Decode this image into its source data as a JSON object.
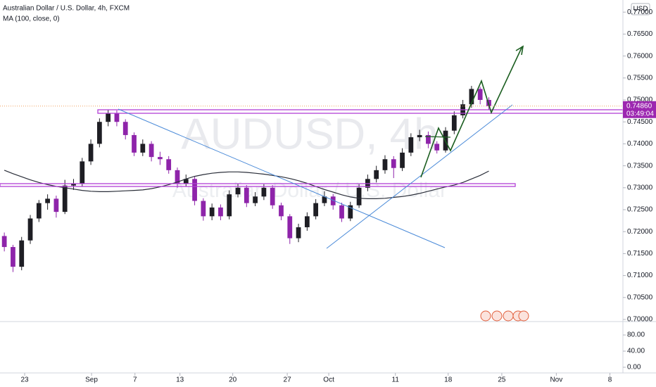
{
  "chart_data": [
    {
      "type": "candlestick",
      "title": "Australian Dollar / U.S. Dollar, 4h, FXCM",
      "subtitle": "MA (100, close, 0)",
      "watermark": "AUDUSD, 4h",
      "watermark_subtitle": "Australian Dollar / U.S. Dollar",
      "currency": "USD",
      "up_color": "#1e1e24",
      "down_color": "#8e24aa",
      "open": [
        0.719,
        0.7165,
        0.712,
        0.718,
        0.723,
        0.7265,
        0.7275,
        0.7245,
        0.7305,
        0.731,
        0.736,
        0.74,
        0.745,
        0.747,
        0.745,
        0.742,
        0.738,
        0.74,
        0.737,
        0.7365,
        0.734,
        0.731,
        0.732,
        0.727,
        0.7235,
        0.7255,
        0.7235,
        0.7285,
        0.73,
        0.7265,
        0.728,
        0.73,
        0.726,
        0.7235,
        0.7185,
        0.721,
        0.7235,
        0.7265,
        0.728,
        0.726,
        0.723,
        0.726,
        0.73,
        0.732,
        0.734,
        0.7365,
        0.7345,
        0.738,
        0.7415,
        0.742,
        0.74,
        0.7385,
        0.743,
        0.7465,
        0.749,
        0.7525,
        0.75
      ],
      "high": [
        0.7198,
        0.717,
        0.7188,
        0.7238,
        0.7272,
        0.7285,
        0.7282,
        0.7318,
        0.732,
        0.7368,
        0.741,
        0.7458,
        0.7478,
        0.7476,
        0.7456,
        0.7426,
        0.741,
        0.7406,
        0.7382,
        0.7372,
        0.7346,
        0.733,
        0.7326,
        0.7276,
        0.7264,
        0.7262,
        0.7294,
        0.731,
        0.7306,
        0.729,
        0.7308,
        0.7306,
        0.7266,
        0.724,
        0.7218,
        0.7244,
        0.7274,
        0.7292,
        0.7286,
        0.7266,
        0.7268,
        0.7308,
        0.733,
        0.735,
        0.7374,
        0.7372,
        0.739,
        0.7424,
        0.7432,
        0.7428,
        0.7406,
        0.7438,
        0.7474,
        0.75,
        0.7532,
        0.753,
        0.7506
      ],
      "low": [
        0.7155,
        0.7108,
        0.7112,
        0.7172,
        0.7222,
        0.725,
        0.7232,
        0.724,
        0.7295,
        0.7302,
        0.7352,
        0.7392,
        0.744,
        0.744,
        0.741,
        0.7372,
        0.7372,
        0.736,
        0.7352,
        0.7332,
        0.73,
        0.7302,
        0.726,
        0.7225,
        0.7226,
        0.7226,
        0.7228,
        0.7278,
        0.7256,
        0.7258,
        0.7272,
        0.7252,
        0.7226,
        0.7172,
        0.7176,
        0.7202,
        0.7228,
        0.7258,
        0.725,
        0.7222,
        0.7224,
        0.7254,
        0.7292,
        0.7312,
        0.7332,
        0.7322,
        0.7338,
        0.7372,
        0.7406,
        0.739,
        0.7378,
        0.738,
        0.7422,
        0.7458,
        0.7482,
        0.749,
        0.7478
      ],
      "close": [
        0.7165,
        0.712,
        0.718,
        0.723,
        0.7265,
        0.7275,
        0.7245,
        0.7305,
        0.731,
        0.736,
        0.74,
        0.745,
        0.747,
        0.745,
        0.742,
        0.738,
        0.74,
        0.737,
        0.7365,
        0.734,
        0.731,
        0.732,
        0.727,
        0.7235,
        0.7255,
        0.7235,
        0.7285,
        0.73,
        0.7265,
        0.728,
        0.73,
        0.726,
        0.7235,
        0.7185,
        0.721,
        0.7235,
        0.7265,
        0.728,
        0.726,
        0.723,
        0.726,
        0.73,
        0.732,
        0.734,
        0.7365,
        0.7345,
        0.738,
        0.7415,
        0.742,
        0.74,
        0.7385,
        0.743,
        0.7465,
        0.749,
        0.7525,
        0.75,
        0.7486
      ],
      "ma": {
        "color": "#2a2e39",
        "values": [
          0.734,
          0.7332,
          0.7325,
          0.7318,
          0.7312,
          0.7307,
          0.7303,
          0.73,
          0.7297,
          0.7294,
          0.7292,
          0.7291,
          0.7291,
          0.7292,
          0.7293,
          0.7294,
          0.7295,
          0.7298,
          0.7302,
          0.7307,
          0.7313,
          0.732,
          0.7326,
          0.733,
          0.7333,
          0.7335,
          0.7336,
          0.7336,
          0.7335,
          0.7333,
          0.7331,
          0.7328,
          0.7325,
          0.7321,
          0.7316,
          0.731,
          0.7303,
          0.7296,
          0.729,
          0.7284,
          0.7279,
          0.7276,
          0.7275,
          0.7275,
          0.7276,
          0.7278,
          0.728,
          0.7283,
          0.7287,
          0.7292,
          0.7297,
          0.7302,
          0.7306,
          0.7312,
          0.732,
          0.7328,
          0.7338
        ]
      },
      "last_price": {
        "value": 0.7486,
        "label": "0.74860"
      },
      "countdown": "03:49:04",
      "last_color": "#9c27b0",
      "xlim": [
        -0.5,
        71.5
      ],
      "xticks": [
        {
          "value": 2.35,
          "label": "23"
        },
        {
          "value": 10.08,
          "label": "Sep"
        },
        {
          "value": 15.1,
          "label": "7"
        },
        {
          "value": 20.3,
          "label": "13"
        },
        {
          "value": 26.4,
          "label": "20"
        },
        {
          "value": 32.7,
          "label": "27"
        },
        {
          "value": 37.5,
          "label": "Oct"
        },
        {
          "value": 45.2,
          "label": "11"
        },
        {
          "value": 51.3,
          "label": "18"
        },
        {
          "value": 57.5,
          "label": "25"
        },
        {
          "value": 63.8,
          "label": "Nov"
        },
        {
          "value": 70.0,
          "label": "8"
        }
      ],
      "ylim": [
        0.69984,
        0.77276
      ],
      "yticks": [
        {
          "value": 0.7,
          "label": "0.70000"
        },
        {
          "value": 0.705,
          "label": "0.70500"
        },
        {
          "value": 0.71,
          "label": "0.71000"
        },
        {
          "value": 0.715,
          "label": "0.71500"
        },
        {
          "value": 0.72,
          "label": "0.72000"
        },
        {
          "value": 0.725,
          "label": "0.72500"
        },
        {
          "value": 0.73,
          "label": "0.73000"
        },
        {
          "value": 0.735,
          "label": "0.73500"
        },
        {
          "value": 0.74,
          "label": "0.74000"
        },
        {
          "value": 0.745,
          "label": "0.74500"
        },
        {
          "value": 0.75,
          "label": "0.75000"
        },
        {
          "value": 0.755,
          "label": "0.75500"
        },
        {
          "value": 0.76,
          "label": "0.76000"
        },
        {
          "value": 0.765,
          "label": "0.76500"
        },
        {
          "value": 0.77,
          "label": "0.77000"
        }
      ]
    },
    {
      "type": "pane",
      "ylim": [
        -14,
        108
      ],
      "yticks": [
        {
          "value": 0,
          "label": "0.00"
        },
        {
          "value": 40,
          "label": "40.00"
        },
        {
          "value": 80,
          "label": "80.00"
        }
      ]
    }
  ]
}
